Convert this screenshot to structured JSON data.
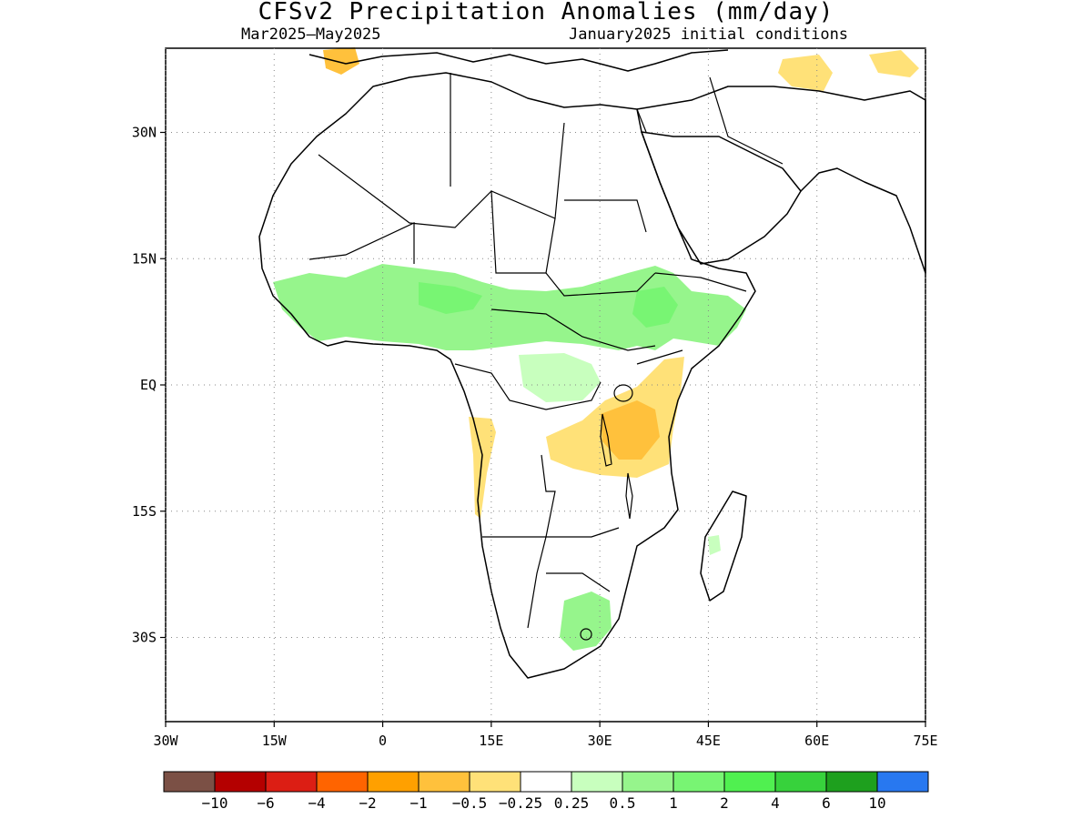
{
  "title": "CFSv2 Precipitation Anomalies (mm/day)",
  "subtitle_left": "Mar2025—May2025",
  "subtitle_right": "January2025 initial conditions",
  "map": {
    "lon_range": [
      -30,
      75
    ],
    "lat_range": [
      -40,
      40
    ],
    "grid": "dotted",
    "lat_ticks": [
      {
        "value": 30,
        "label": "30N"
      },
      {
        "value": 15,
        "label": "15N"
      },
      {
        "value": 0,
        "label": "EQ"
      },
      {
        "value": -15,
        "label": "15S"
      },
      {
        "value": -30,
        "label": "30S"
      }
    ],
    "lon_ticks": [
      {
        "value": -30,
        "label": "30W"
      },
      {
        "value": -15,
        "label": "15W"
      },
      {
        "value": 0,
        "label": "0"
      },
      {
        "value": 15,
        "label": "15E"
      },
      {
        "value": 30,
        "label": "30E"
      },
      {
        "value": 45,
        "label": "45E"
      },
      {
        "value": 60,
        "label": "60E"
      },
      {
        "value": 75,
        "label": "75E"
      }
    ]
  },
  "colorbar": {
    "colors": [
      "#7b5045",
      "#b40000",
      "#dc1e14",
      "#ff6400",
      "#ffa000",
      "#ffc13c",
      "#ffe178",
      "#ffffff",
      "#c8ffbe",
      "#96f58c",
      "#78f573",
      "#50f050",
      "#37d23c",
      "#1ea01e",
      "#2878f0"
    ],
    "labels": [
      "−10",
      "−6",
      "−4",
      "−2",
      "−1",
      "−0.5",
      "−0.25",
      "0.25",
      "0.5",
      "1",
      "2",
      "4",
      "6",
      "10"
    ]
  }
}
